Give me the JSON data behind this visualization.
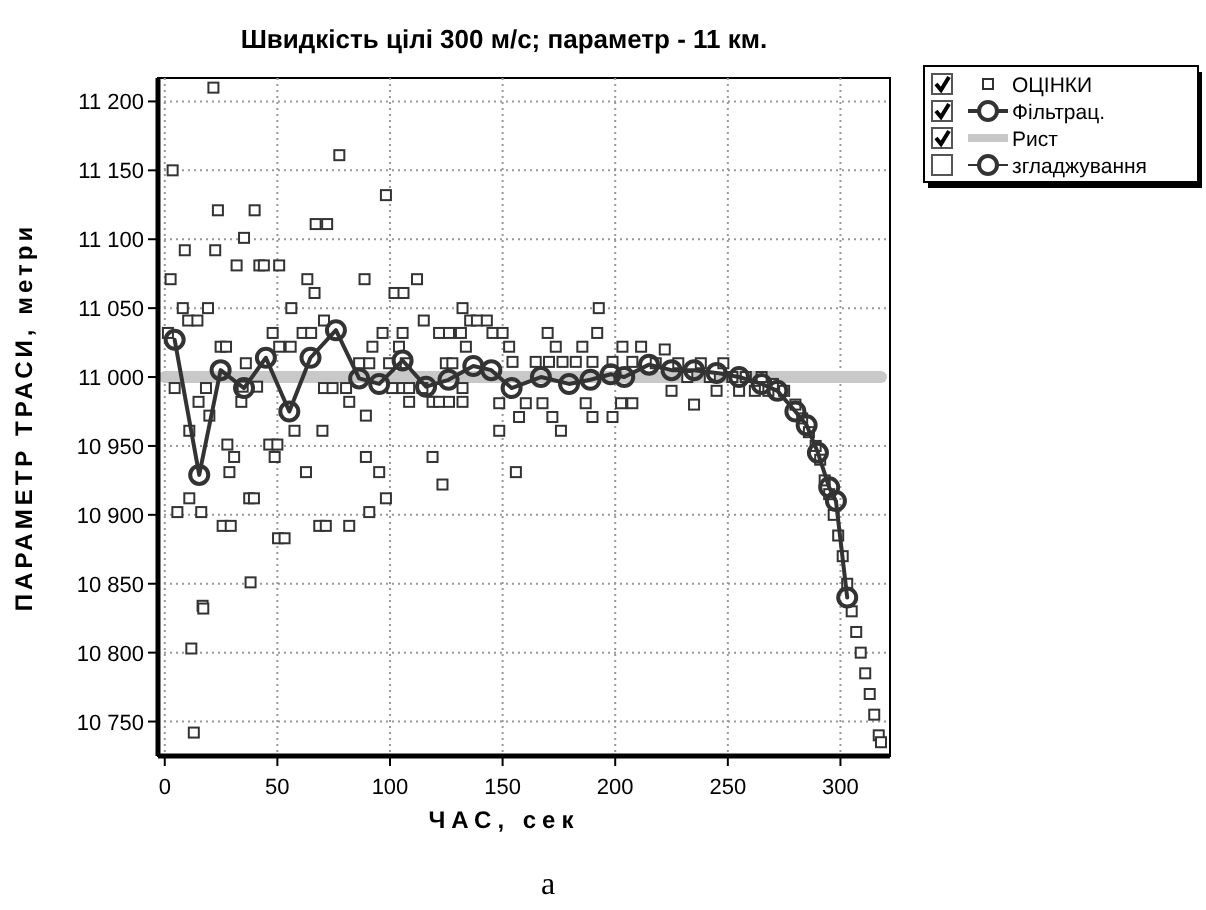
{
  "chart_data": {
    "type": "scatter",
    "title": "Швидкість цілі 300 м/с; параметр - 11 км.",
    "xlabel": "ЧАС,  сек",
    "ylabel": "ПАРАМЕТР ТРАСИ, метри",
    "annotations": [
      "а"
    ],
    "xlim": [
      -3,
      322
    ],
    "ylim": [
      10725,
      11217
    ],
    "xticks": [
      0,
      50,
      100,
      150,
      200,
      250,
      300
    ],
    "yticks": [
      {
        "value": 10750,
        "label": "10 750"
      },
      {
        "value": 10800,
        "label": "10 800"
      },
      {
        "value": 10850,
        "label": "10 850"
      },
      {
        "value": 10900,
        "label": "10 900"
      },
      {
        "value": 10950,
        "label": "10 950"
      },
      {
        "value": 11000,
        "label": "11 000"
      },
      {
        "value": 11050,
        "label": "11 050"
      },
      {
        "value": 11100,
        "label": "11 100"
      },
      {
        "value": 11150,
        "label": "11 150"
      },
      {
        "value": 11200,
        "label": "11 200"
      }
    ],
    "grid": true,
    "legend": "top right",
    "series": [
      {
        "name": "ОЦІНКИ",
        "marker": "square",
        "color": "#333333",
        "x": [
          1.4,
          2.6,
          3.5,
          4.4,
          5.6,
          8,
          8.9,
          10.4,
          10.9,
          10.9,
          11.8,
          12.9,
          14.5,
          15,
          16.2,
          16.8,
          17.1,
          18.3,
          19.2,
          19.8,
          21.6,
          22.4,
          23.6,
          24.8,
          25.7,
          27.2,
          27.8,
          28.7,
          29.3,
          30.8,
          31.9,
          34,
          34.6,
          35.2,
          36,
          37.5,
          38.1,
          39.6,
          39.9,
          41,
          42,
          44,
          46.4,
          47.9,
          48.8,
          50,
          50.3,
          50.8,
          50.8,
          53.2,
          55.9,
          56.2,
          57.6,
          61.2,
          62.7,
          63.3,
          65,
          66.5,
          67,
          68.6,
          70,
          70.7,
          70.7,
          71.5,
          72.1,
          74.5,
          77.5,
          80.5,
          81.9,
          81.9,
          86.3,
          88.7,
          89.3,
          89.3,
          90.8,
          90.8,
          92.2,
          95.2,
          96.7,
          98.2,
          98.2,
          99.6,
          101,
          102,
          104,
          105.6,
          105.6,
          106,
          107,
          108.5,
          108.5,
          112,
          114.4,
          115,
          118.9,
          118.9,
          121.8,
          121.8,
          123.3,
          124.8,
          126.2,
          126.2,
          127.7,
          131.5,
          132.2,
          132.2,
          132.2,
          133.7,
          135.6,
          138.6,
          143,
          145.5,
          148.5,
          148.5,
          150,
          152.9,
          154.4,
          155.9,
          157.3,
          160.3,
          164.7,
          167.7,
          170,
          170.6,
          172.1,
          173.6,
          175.9,
          176.6,
          182.5,
          185.4,
          186.9,
          189.9,
          189.9,
          192,
          192.7,
          198.8,
          198.8,
          202.6,
          203.2,
          207.6,
          207.6,
          211.5,
          218,
          222,
          225,
          228,
          232,
          235,
          238,
          242,
          245,
          248,
          252,
          255,
          258,
          262,
          265,
          268,
          270,
          275,
          280,
          283,
          286,
          289,
          291,
          293,
          295,
          297,
          299,
          301,
          303,
          305,
          307,
          309,
          311,
          313,
          315,
          317,
          318
        ],
        "values": [
          11032,
          11071,
          11150,
          10992,
          10902,
          11050,
          11092,
          11041,
          10961,
          10912,
          10803,
          10742,
          11041,
          10982,
          10902,
          10834,
          10832,
          10992,
          11050,
          10972,
          11210,
          11092,
          11121,
          11022,
          10892,
          11022,
          10951,
          10931,
          10892,
          10942,
          11081,
          10982,
          10993,
          11101,
          11010,
          10912,
          10851,
          10912,
          11121,
          10993,
          11081,
          11081,
          10951,
          11032,
          10942,
          10951,
          10883,
          11081,
          11022,
          10883,
          11022,
          11050,
          10961,
          11032,
          10931,
          11071,
          11032,
          11061,
          11111,
          10892,
          10961,
          10992,
          11041,
          10892,
          11111,
          10992,
          11161,
          10992,
          10982,
          10892,
          11010,
          11071,
          10972,
          10942,
          11010,
          10902,
          11022,
          10931,
          11032,
          11132,
          10912,
          11010,
          10992,
          11061,
          11022,
          11032,
          10992,
          11061,
          11010,
          10992,
          10982,
          11071,
          10992,
          11041,
          10982,
          10942,
          11032,
          10982,
          10922,
          11010,
          11032,
          10982,
          11010,
          11032,
          11050,
          10992,
          10982,
          11022,
          11041,
          11041,
          11041,
          11032,
          10981,
          10961,
          11032,
          11022,
          11011,
          10931,
          10971,
          10981,
          11011,
          10981,
          11032,
          11011,
          10971,
          11022,
          10961,
          11011,
          11011,
          11022,
          10981,
          11011,
          10971,
          11032,
          11050,
          11011,
          10971,
          10981,
          11022,
          11011,
          10981,
          11022,
          11010,
          11020,
          10990,
          11010,
          11000,
          10980,
          11010,
          11000,
          10990,
          11010,
          11000,
          10990,
          11000,
          10990,
          11000,
          10990,
          10995,
          10990,
          10980,
          10970,
          10960,
          10950,
          10940,
          10925,
          10915,
          10900,
          10885,
          10870,
          10850,
          10830,
          10815,
          10800,
          10785,
          10770,
          10755,
          10740,
          10735
        ]
      },
      {
        "name": "Фільтрац.",
        "type": "line",
        "marker": "circle",
        "color": "#333333",
        "x": [
          4.4,
          15.3,
          24.8,
          35.2,
          44.9,
          55.3,
          64.7,
          76,
          86.3,
          95.2,
          105.6,
          116,
          126,
          137,
          145,
          154,
          167,
          179.5,
          189,
          198,
          204,
          215,
          225,
          235,
          245,
          255,
          265,
          272,
          280,
          285,
          290,
          295,
          298,
          303
        ],
        "values": [
          11027,
          10929,
          11005,
          10992,
          11014,
          10975,
          11014,
          11034,
          10999,
          10995,
          11012,
          10993,
          10998,
          11008,
          11005,
          10992,
          11000,
          10995,
          10998,
          11002,
          11000,
          11009,
          11005,
          11005,
          11003,
          11000,
          10995,
          10990,
          10975,
          10965,
          10945,
          10920,
          10910,
          10840
        ]
      },
      {
        "name": "Рист",
        "type": "line",
        "marker": "none",
        "color": "#c8c8c8",
        "x": [
          0,
          318
        ],
        "values": [
          11000,
          11000
        ]
      },
      {
        "name": "згладжування",
        "type": "line",
        "marker": "circle",
        "color": "#333333"
      }
    ]
  }
}
